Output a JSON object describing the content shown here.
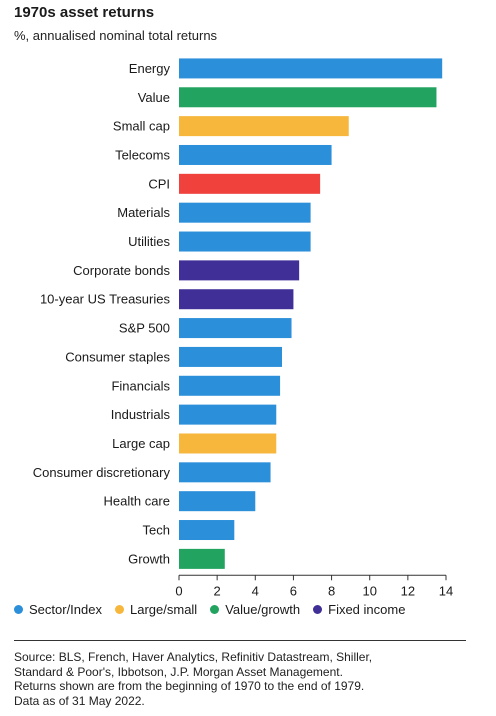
{
  "chart_data": {
    "type": "bar",
    "orientation": "horizontal",
    "title": "1970s asset returns",
    "subtitle": "%, annualised nominal total returns",
    "categories": [
      "Energy",
      "Value",
      "Small cap",
      "Telecoms",
      "CPI",
      "Materials",
      "Utilities",
      "Corporate bonds",
      "10-year US Treasuries",
      "S&P 500",
      "Consumer staples",
      "Financials",
      "Industrials",
      "Large cap",
      "Consumer discretionary",
      "Health care",
      "Tech",
      "Growth"
    ],
    "values": [
      13.8,
      13.5,
      8.9,
      8.0,
      7.4,
      6.9,
      6.9,
      6.3,
      6.0,
      5.9,
      5.4,
      5.3,
      5.1,
      5.1,
      4.8,
      4.0,
      2.9,
      2.4
    ],
    "groups": [
      "Sector/Index",
      "Value/growth",
      "Large/small",
      "Sector/Index",
      "CPI",
      "Sector/Index",
      "Sector/Index",
      "Fixed income",
      "Fixed income",
      "Sector/Index",
      "Sector/Index",
      "Sector/Index",
      "Sector/Index",
      "Large/small",
      "Sector/Index",
      "Sector/Index",
      "Sector/Index",
      "Value/growth"
    ],
    "colors": {
      "Sector/Index": "#2b8fd9",
      "Large/small": "#f6b73c",
      "Value/growth": "#22a35f",
      "Fixed income": "#3f2f96",
      "CPI": "#f0413d"
    },
    "xlim": [
      0,
      14
    ],
    "xticks": [
      0,
      2,
      4,
      6,
      8,
      10,
      12,
      14
    ],
    "xlabel": "",
    "ylabel": "",
    "grid": false,
    "legend_position": "bottom",
    "legend": [
      {
        "label": "Sector/Index",
        "group": "Sector/Index"
      },
      {
        "label": "Large/small",
        "group": "Large/small"
      },
      {
        "label": "Value/growth",
        "group": "Value/growth"
      },
      {
        "label": "Fixed income",
        "group": "Fixed income"
      }
    ]
  },
  "source_lines": [
    "Source: BLS, French, Haver Analytics, Refinitiv Datastream, Shiller,",
    "Standard & Poor's, Ibbotson, J.P. Morgan Asset Management.",
    "Returns shown are from the beginning of 1970 to the end of 1979.",
    "Data as of 31 May 2022."
  ]
}
